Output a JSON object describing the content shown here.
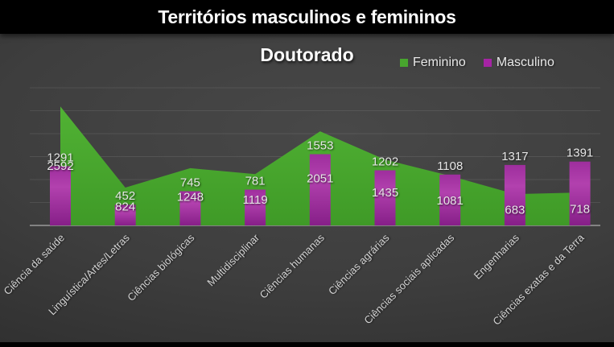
{
  "header": {
    "title": "Territórios masculinos e femininos"
  },
  "chart_data": {
    "type": "combo",
    "title": "Doutorado",
    "categories": [
      "Ciência da saúde",
      "Linguística/Artes/Letras",
      "Ciências biológicas",
      "Multidisciplinar",
      "Ciências humanas",
      "Ciências agrárias",
      "Ciências sociais aplicadas",
      "Engenharias",
      "Ciências exatas e da Terra"
    ],
    "series": [
      {
        "name": "Feminino",
        "type": "area",
        "color": "#48a52e",
        "values": [
          2592,
          824,
          1248,
          1119,
          2051,
          1435,
          1081,
          683,
          718
        ]
      },
      {
        "name": "Masculino",
        "type": "bar",
        "color": "#a524a4",
        "values": [
          1291,
          452,
          745,
          781,
          1553,
          1202,
          1108,
          1317,
          1391
        ]
      }
    ],
    "ylim": [
      0,
      3000
    ],
    "gridline_step": 500,
    "grid": true,
    "y_tick_labels": "hidden",
    "data_labels": "visible",
    "legend_position": "top-right",
    "x_label_rotation_deg": 45
  }
}
